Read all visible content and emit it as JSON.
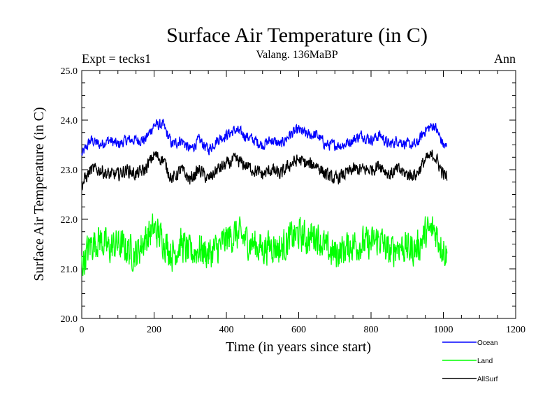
{
  "chart_data": {
    "type": "line",
    "title": "Surface Air Temperature (in C)",
    "subtitle": "Valang. 136MaBP",
    "left_label": "Expt = tecks1",
    "right_label": "Ann",
    "xlabel": "Time (in years since start)",
    "ylabel": "Surface Air Temperature (in C)",
    "xlim": [
      0,
      1200
    ],
    "ylim": [
      20.0,
      25.0
    ],
    "xticks": [
      0,
      200,
      400,
      600,
      800,
      1000,
      1200
    ],
    "xtick_labels": [
      "0",
      "200",
      "400",
      "600",
      "800",
      "1000",
      "1200"
    ],
    "yticks": [
      20.0,
      21.0,
      22.0,
      23.0,
      24.0,
      25.0
    ],
    "ytick_labels": [
      "20.0",
      "21.0",
      "22.0",
      "23.0",
      "24.0",
      "25.0"
    ],
    "legend_position": "bottom-right",
    "series": [
      {
        "name": "Ocean",
        "color": "#0000ff",
        "x": [
          0,
          25,
          50,
          75,
          100,
          125,
          150,
          175,
          200,
          225,
          250,
          275,
          300,
          325,
          350,
          375,
          400,
          425,
          450,
          475,
          500,
          525,
          550,
          575,
          600,
          625,
          650,
          675,
          700,
          725,
          750,
          775,
          800,
          825,
          850,
          875,
          900,
          925,
          950,
          975,
          1000,
          1010
        ],
        "values": [
          23.3,
          23.6,
          23.5,
          23.6,
          23.5,
          23.6,
          23.6,
          23.6,
          23.9,
          23.9,
          23.5,
          23.6,
          23.4,
          23.6,
          23.4,
          23.6,
          23.7,
          23.8,
          23.7,
          23.6,
          23.5,
          23.6,
          23.5,
          23.7,
          23.8,
          23.7,
          23.7,
          23.5,
          23.5,
          23.5,
          23.6,
          23.7,
          23.6,
          23.7,
          23.5,
          23.6,
          23.5,
          23.5,
          23.8,
          23.9,
          23.5,
          23.45
        ],
        "noise": 0.1
      },
      {
        "name": "Land",
        "color": "#00ff00",
        "x": [
          0,
          25,
          50,
          75,
          100,
          125,
          150,
          175,
          200,
          225,
          250,
          275,
          300,
          325,
          350,
          375,
          400,
          425,
          450,
          475,
          500,
          525,
          550,
          575,
          600,
          625,
          650,
          675,
          700,
          725,
          750,
          775,
          800,
          825,
          850,
          875,
          900,
          925,
          950,
          975,
          1000,
          1010
        ],
        "values": [
          21.1,
          21.5,
          21.6,
          21.4,
          21.5,
          21.4,
          21.3,
          21.6,
          21.8,
          21.6,
          21.3,
          21.5,
          21.3,
          21.4,
          21.3,
          21.4,
          21.6,
          21.7,
          21.6,
          21.5,
          21.4,
          21.5,
          21.4,
          21.6,
          21.7,
          21.6,
          21.7,
          21.4,
          21.3,
          21.4,
          21.5,
          21.5,
          21.5,
          21.6,
          21.3,
          21.5,
          21.4,
          21.4,
          21.7,
          21.8,
          21.4,
          21.3
        ],
        "noise": 0.3
      },
      {
        "name": "AllSurf",
        "color": "#000000",
        "x": [
          0,
          25,
          50,
          75,
          100,
          125,
          150,
          175,
          200,
          225,
          250,
          275,
          300,
          325,
          350,
          375,
          400,
          425,
          450,
          475,
          500,
          525,
          550,
          575,
          600,
          625,
          650,
          675,
          700,
          725,
          750,
          775,
          800,
          825,
          850,
          875,
          900,
          925,
          950,
          975,
          1000,
          1010
        ],
        "values": [
          22.7,
          23.0,
          23.0,
          22.9,
          22.9,
          23.0,
          22.9,
          23.0,
          23.3,
          23.2,
          22.8,
          23.0,
          22.8,
          23.0,
          22.8,
          23.0,
          23.1,
          23.2,
          23.1,
          23.0,
          22.9,
          23.0,
          22.9,
          23.1,
          23.2,
          23.1,
          23.1,
          22.9,
          22.8,
          22.9,
          23.0,
          23.0,
          23.0,
          23.1,
          22.9,
          23.0,
          22.9,
          22.9,
          23.2,
          23.3,
          22.9,
          22.85
        ],
        "noise": 0.12
      }
    ]
  }
}
